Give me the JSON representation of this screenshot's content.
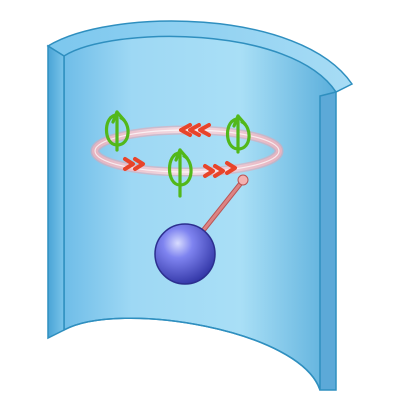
{
  "illustration": {
    "colors": {
      "background": "#ffffff",
      "shell_face": "#8fd0f2",
      "shell_edge": "#2f8fbf",
      "shell_thickness_face": "#66b7e2",
      "ring": "#e8a0a8",
      "ring_arrows": "#e8442a",
      "curl_arrows": "#52b81a",
      "rod": "#d98080",
      "sphere": "#6b6fe0"
    },
    "ring_arrow_counts": {
      "front": 3,
      "back": 2
    },
    "curl_arrow_count": 3
  }
}
